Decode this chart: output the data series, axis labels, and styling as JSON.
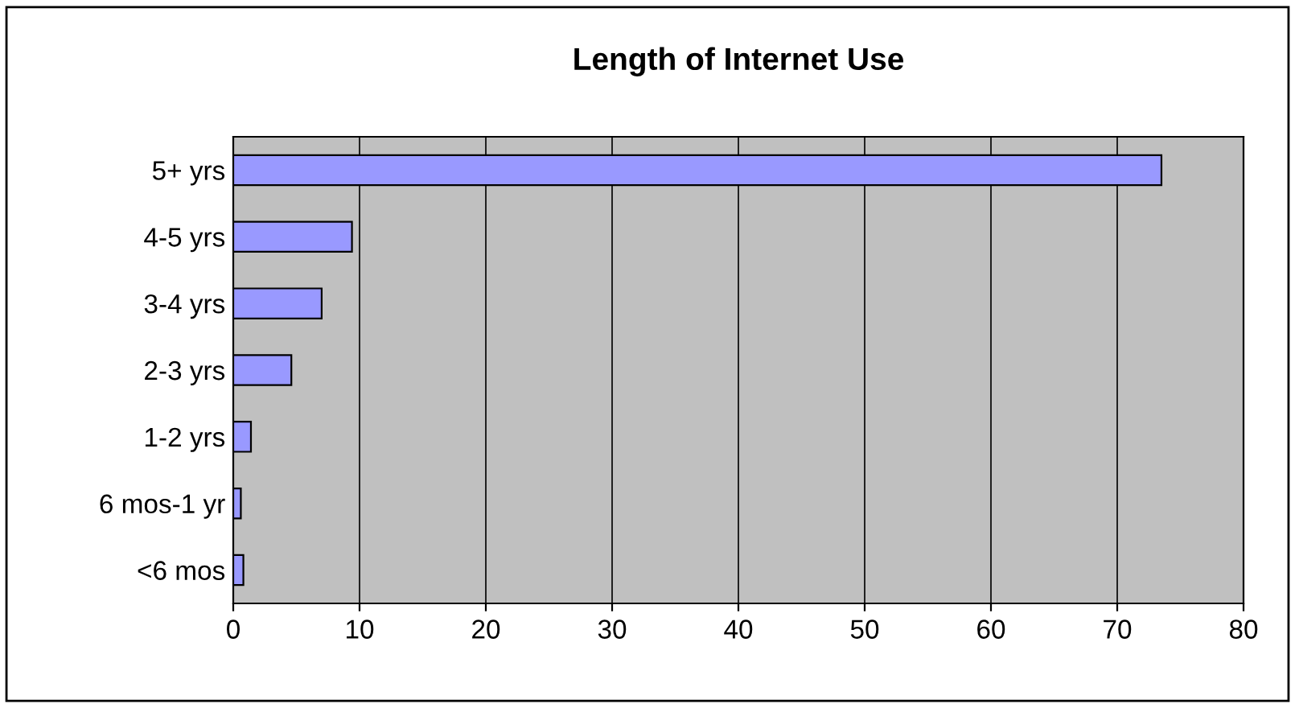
{
  "chart_data": {
    "type": "bar",
    "orientation": "horizontal",
    "title": "Length of Internet Use",
    "categories": [
      "5+ yrs",
      "4-5 yrs",
      "3-4 yrs",
      "2-3 yrs",
      "1-2 yrs",
      "6 mos-1 yr",
      "<6 mos"
    ],
    "values": [
      73.5,
      9.4,
      7.0,
      4.6,
      1.4,
      0.6,
      0.8
    ],
    "color": "#9999ff",
    "xlim": [
      0,
      80
    ],
    "xticks": [
      0,
      10,
      20,
      30,
      40,
      50,
      60,
      70,
      80
    ],
    "grid": "x"
  }
}
